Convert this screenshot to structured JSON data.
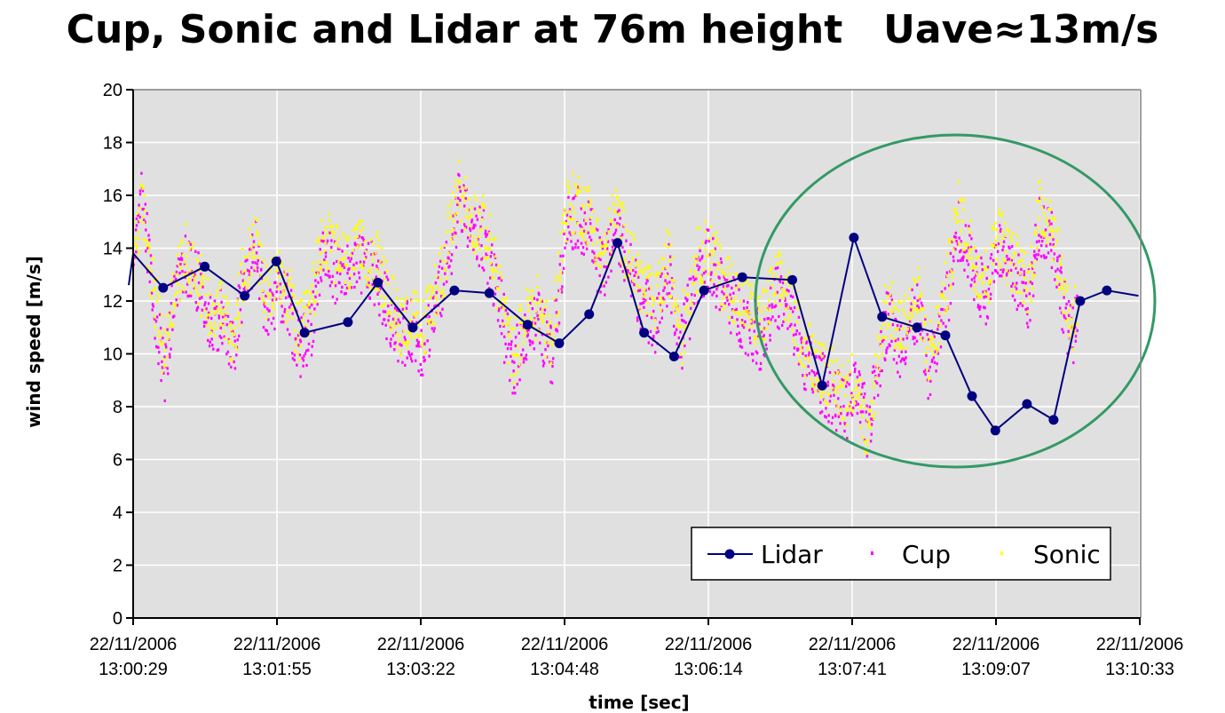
{
  "title": "Cup, Sonic and Lidar at 76m height   Uave≈13m/s",
  "colors": {
    "lidar": "#000080",
    "cup": "#ff00ff",
    "sonic": "#ffff00",
    "plot_bg": "#e0e0e0",
    "highlight": "#339966"
  },
  "chart_data": {
    "type": "scatter",
    "xlabel": "time [sec]",
    "ylabel": "wind speed [m/s]",
    "ylim": [
      0,
      20
    ],
    "yticks": [
      0,
      2,
      4,
      6,
      8,
      10,
      12,
      14,
      16,
      18,
      20
    ],
    "xtick_labels": [
      [
        "22/11/2006",
        "13:00:29"
      ],
      [
        "22/11/2006",
        "13:01:55"
      ],
      [
        "22/11/2006",
        "13:03:22"
      ],
      [
        "22/11/2006",
        "13:04:48"
      ],
      [
        "22/11/2006",
        "13:06:14"
      ],
      [
        "22/11/2006",
        "13:07:41"
      ],
      [
        "22/11/2006",
        "13:09:07"
      ],
      [
        "22/11/2006",
        "13:10:33"
      ]
    ],
    "grid": true,
    "legend_position": "bottom-right",
    "series": [
      {
        "name": "Lidar",
        "style": "line-with-markers",
        "points": [
          [
            "13:00:23",
            12.6
          ],
          [
            "13:00:29",
            13.8
          ],
          [
            "13:00:47",
            12.5
          ],
          [
            "13:01:12",
            13.3
          ],
          [
            "13:01:36",
            12.2
          ],
          [
            "13:01:55",
            13.5
          ],
          [
            "13:02:12",
            10.8
          ],
          [
            "13:02:38",
            11.2
          ],
          [
            "13:02:56",
            12.7
          ],
          [
            "13:03:17",
            11.0
          ],
          [
            "13:03:42",
            12.4
          ],
          [
            "13:04:03",
            12.3
          ],
          [
            "13:04:26",
            11.1
          ],
          [
            "13:04:45",
            10.4
          ],
          [
            "13:05:03",
            11.5
          ],
          [
            "13:05:20",
            14.2
          ],
          [
            "13:05:36",
            10.8
          ],
          [
            "13:05:54",
            9.9
          ],
          [
            "13:06:12",
            12.4
          ],
          [
            "13:06:35",
            12.9
          ],
          [
            "13:07:05",
            12.8
          ],
          [
            "13:07:23",
            8.8
          ],
          [
            "13:07:42",
            14.4
          ],
          [
            "13:07:59",
            11.4
          ],
          [
            "13:08:20",
            11.0
          ],
          [
            "13:08:37",
            10.7
          ],
          [
            "13:08:53",
            8.4
          ],
          [
            "13:09:07",
            7.1
          ],
          [
            "13:09:26",
            8.1
          ],
          [
            "13:09:42",
            7.5
          ],
          [
            "13:09:58",
            12.0
          ],
          [
            "13:10:14",
            12.4
          ],
          [
            "13:10:33",
            12.2
          ]
        ]
      },
      {
        "name": "Cup",
        "style": "markers",
        "trace": [
          [
            "13:00:29",
            13.6
          ],
          [
            "13:00:34",
            15.8
          ],
          [
            "13:00:40",
            12.2
          ],
          [
            "13:00:47",
            9.2
          ],
          [
            "13:00:53",
            11.9
          ],
          [
            "13:01:00",
            13.3
          ],
          [
            "13:01:07",
            12.8
          ],
          [
            "13:01:14",
            11.1
          ],
          [
            "13:01:21",
            11.4
          ],
          [
            "13:01:28",
            9.9
          ],
          [
            "13:01:35",
            12.6
          ],
          [
            "13:01:42",
            13.9
          ],
          [
            "13:01:49",
            11.3
          ],
          [
            "13:01:55",
            12.5
          ],
          [
            "13:02:01",
            11.8
          ],
          [
            "13:02:08",
            10.1
          ],
          [
            "13:02:15",
            11.0
          ],
          [
            "13:02:22",
            13.8
          ],
          [
            "13:02:30",
            13.1
          ],
          [
            "13:02:38",
            12.9
          ],
          [
            "13:02:46",
            13.4
          ],
          [
            "13:02:55",
            12.8
          ],
          [
            "13:03:02",
            11.5
          ],
          [
            "13:03:09",
            10.6
          ],
          [
            "13:03:16",
            10.9
          ],
          [
            "13:03:22",
            10.2
          ],
          [
            "13:03:29",
            11.6
          ],
          [
            "13:03:36",
            13.0
          ],
          [
            "13:03:44",
            15.8
          ],
          [
            "13:03:52",
            14.6
          ],
          [
            "13:04:00",
            14.2
          ],
          [
            "13:04:08",
            12.1
          ],
          [
            "13:04:16",
            9.3
          ],
          [
            "13:04:24",
            10.8
          ],
          [
            "13:04:32",
            11.2
          ],
          [
            "13:04:40",
            9.8
          ],
          [
            "13:04:48",
            14.9
          ],
          [
            "13:04:55",
            15.2
          ],
          [
            "13:05:03",
            14.6
          ],
          [
            "13:05:11",
            12.8
          ],
          [
            "13:05:18",
            14.8
          ],
          [
            "13:05:26",
            13.2
          ],
          [
            "13:05:34",
            12.0
          ],
          [
            "13:05:42",
            11.2
          ],
          [
            "13:05:50",
            13.0
          ],
          [
            "13:05:58",
            10.2
          ],
          [
            "13:06:06",
            12.8
          ],
          [
            "13:06:14",
            13.6
          ],
          [
            "13:06:22",
            12.4
          ],
          [
            "13:06:30",
            11.7
          ],
          [
            "13:06:38",
            11.1
          ],
          [
            "13:06:46",
            10.5
          ],
          [
            "13:06:55",
            12.2
          ],
          [
            "13:07:03",
            11.4
          ],
          [
            "13:07:12",
            9.7
          ],
          [
            "13:07:20",
            9.0
          ],
          [
            "13:07:28",
            8.5
          ],
          [
            "13:07:36",
            7.8
          ],
          [
            "13:07:43",
            8.6
          ],
          [
            "13:07:50",
            7.1
          ],
          [
            "13:07:56",
            9.6
          ],
          [
            "13:08:02",
            11.5
          ],
          [
            "13:08:08",
            10.2
          ],
          [
            "13:08:14",
            10.9
          ],
          [
            "13:08:20",
            11.6
          ],
          [
            "13:08:26",
            9.4
          ],
          [
            "13:08:32",
            10.4
          ],
          [
            "13:08:38",
            12.3
          ],
          [
            "13:08:44",
            14.8
          ],
          [
            "13:08:50",
            13.8
          ],
          [
            "13:08:56",
            12.6
          ],
          [
            "13:09:02",
            12.2
          ],
          [
            "13:09:07",
            14.2
          ],
          [
            "13:09:13",
            13.2
          ],
          [
            "13:09:20",
            12.7
          ],
          [
            "13:09:27",
            12.0
          ],
          [
            "13:09:33",
            14.9
          ],
          [
            "13:09:40",
            14.6
          ],
          [
            "13:09:46",
            12.3
          ],
          [
            "13:09:52",
            10.5
          ],
          [
            "13:09:56",
            11.2
          ]
        ]
      },
      {
        "name": "Sonic",
        "style": "markers",
        "trace": [
          [
            "13:00:29",
            13.9
          ],
          [
            "13:00:34",
            15.6
          ],
          [
            "13:00:40",
            12.8
          ],
          [
            "13:00:47",
            9.8
          ],
          [
            "13:00:53",
            12.5
          ],
          [
            "13:01:00",
            13.7
          ],
          [
            "13:01:07",
            13.1
          ],
          [
            "13:01:14",
            11.7
          ],
          [
            "13:01:21",
            11.9
          ],
          [
            "13:01:28",
            10.5
          ],
          [
            "13:01:35",
            13.1
          ],
          [
            "13:01:42",
            14.3
          ],
          [
            "13:01:49",
            11.9
          ],
          [
            "13:01:55",
            13.1
          ],
          [
            "13:02:01",
            12.3
          ],
          [
            "13:02:08",
            10.7
          ],
          [
            "13:02:15",
            11.6
          ],
          [
            "13:02:22",
            14.5
          ],
          [
            "13:02:30",
            13.7
          ],
          [
            "13:02:38",
            13.4
          ],
          [
            "13:02:46",
            13.9
          ],
          [
            "13:02:55",
            13.4
          ],
          [
            "13:03:02",
            12.1
          ],
          [
            "13:03:09",
            11.1
          ],
          [
            "13:03:16",
            11.4
          ],
          [
            "13:03:22",
            10.8
          ],
          [
            "13:03:29",
            12.2
          ],
          [
            "13:03:36",
            13.6
          ],
          [
            "13:03:44",
            16.3
          ],
          [
            "13:03:52",
            15.1
          ],
          [
            "13:04:00",
            14.7
          ],
          [
            "13:04:08",
            12.7
          ],
          [
            "13:04:16",
            9.9
          ],
          [
            "13:04:24",
            11.3
          ],
          [
            "13:04:32",
            11.8
          ],
          [
            "13:04:40",
            10.3
          ],
          [
            "13:04:48",
            15.4
          ],
          [
            "13:04:55",
            15.8
          ],
          [
            "13:05:03",
            15.2
          ],
          [
            "13:05:11",
            13.4
          ],
          [
            "13:05:18",
            15.4
          ],
          [
            "13:05:26",
            13.8
          ],
          [
            "13:05:34",
            12.6
          ],
          [
            "13:05:42",
            11.8
          ],
          [
            "13:05:50",
            13.6
          ],
          [
            "13:05:58",
            10.8
          ],
          [
            "13:06:06",
            13.4
          ],
          [
            "13:06:14",
            14.1
          ],
          [
            "13:06:22",
            12.9
          ],
          [
            "13:06:30",
            12.3
          ],
          [
            "13:06:38",
            11.7
          ],
          [
            "13:06:46",
            11.1
          ],
          [
            "13:06:55",
            12.8
          ],
          [
            "13:07:03",
            12.0
          ],
          [
            "13:07:12",
            10.3
          ],
          [
            "13:07:20",
            9.6
          ],
          [
            "13:07:28",
            9.1
          ],
          [
            "13:07:36",
            8.4
          ],
          [
            "13:07:43",
            9.2
          ],
          [
            "13:07:50",
            6.2
          ],
          [
            "13:07:56",
            10.2
          ],
          [
            "13:08:02",
            12.1
          ],
          [
            "13:08:08",
            10.8
          ],
          [
            "13:08:14",
            11.5
          ],
          [
            "13:08:20",
            12.2
          ],
          [
            "13:08:26",
            10.0
          ],
          [
            "13:08:32",
            11.0
          ],
          [
            "13:08:38",
            12.9
          ],
          [
            "13:08:44",
            15.4
          ],
          [
            "13:08:50",
            14.4
          ],
          [
            "13:08:56",
            13.2
          ],
          [
            "13:09:02",
            12.8
          ],
          [
            "13:09:07",
            14.8
          ],
          [
            "13:09:13",
            13.8
          ],
          [
            "13:09:20",
            13.3
          ],
          [
            "13:09:27",
            12.6
          ],
          [
            "13:09:33",
            15.4
          ],
          [
            "13:09:40",
            15.2
          ],
          [
            "13:09:46",
            12.9
          ],
          [
            "13:09:52",
            11.1
          ],
          [
            "13:09:56",
            11.8
          ]
        ]
      }
    ]
  }
}
